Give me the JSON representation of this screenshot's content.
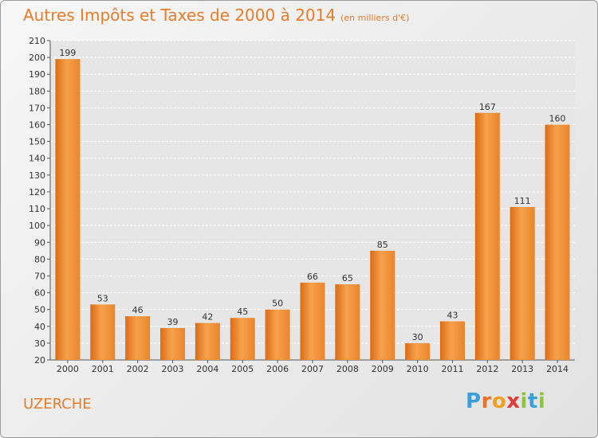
{
  "header": {
    "title": "Autres Impôts et Taxes de 2000 à 2014",
    "unit": "(en milliers d'€)"
  },
  "footer": {
    "commune": "UZERCHE",
    "logo_letters": [
      "P",
      "r",
      "o",
      "x",
      "i",
      "t",
      "i"
    ],
    "logo_colors": [
      "#3aa0dc",
      "#e8742a",
      "#f0a020",
      "#e23a3a",
      "#8cc63f",
      "#3aa0dc",
      "#8cc63f"
    ]
  },
  "chart_data": {
    "type": "bar",
    "categories": [
      "2000",
      "2001",
      "2002",
      "2003",
      "2004",
      "2005",
      "2006",
      "2007",
      "2008",
      "2009",
      "2010",
      "2011",
      "2012",
      "2013",
      "2014"
    ],
    "values": [
      199,
      53,
      46,
      39,
      42,
      45,
      50,
      66,
      65,
      85,
      30,
      43,
      167,
      111,
      160
    ],
    "ylim": [
      20,
      210
    ],
    "yticks": [
      20,
      30,
      40,
      50,
      60,
      70,
      80,
      90,
      100,
      110,
      120,
      130,
      140,
      150,
      160,
      170,
      180,
      190,
      200,
      210
    ],
    "grid": true,
    "bar_color_light": "#f7a14d",
    "bar_color_dark": "#d96c16"
  }
}
